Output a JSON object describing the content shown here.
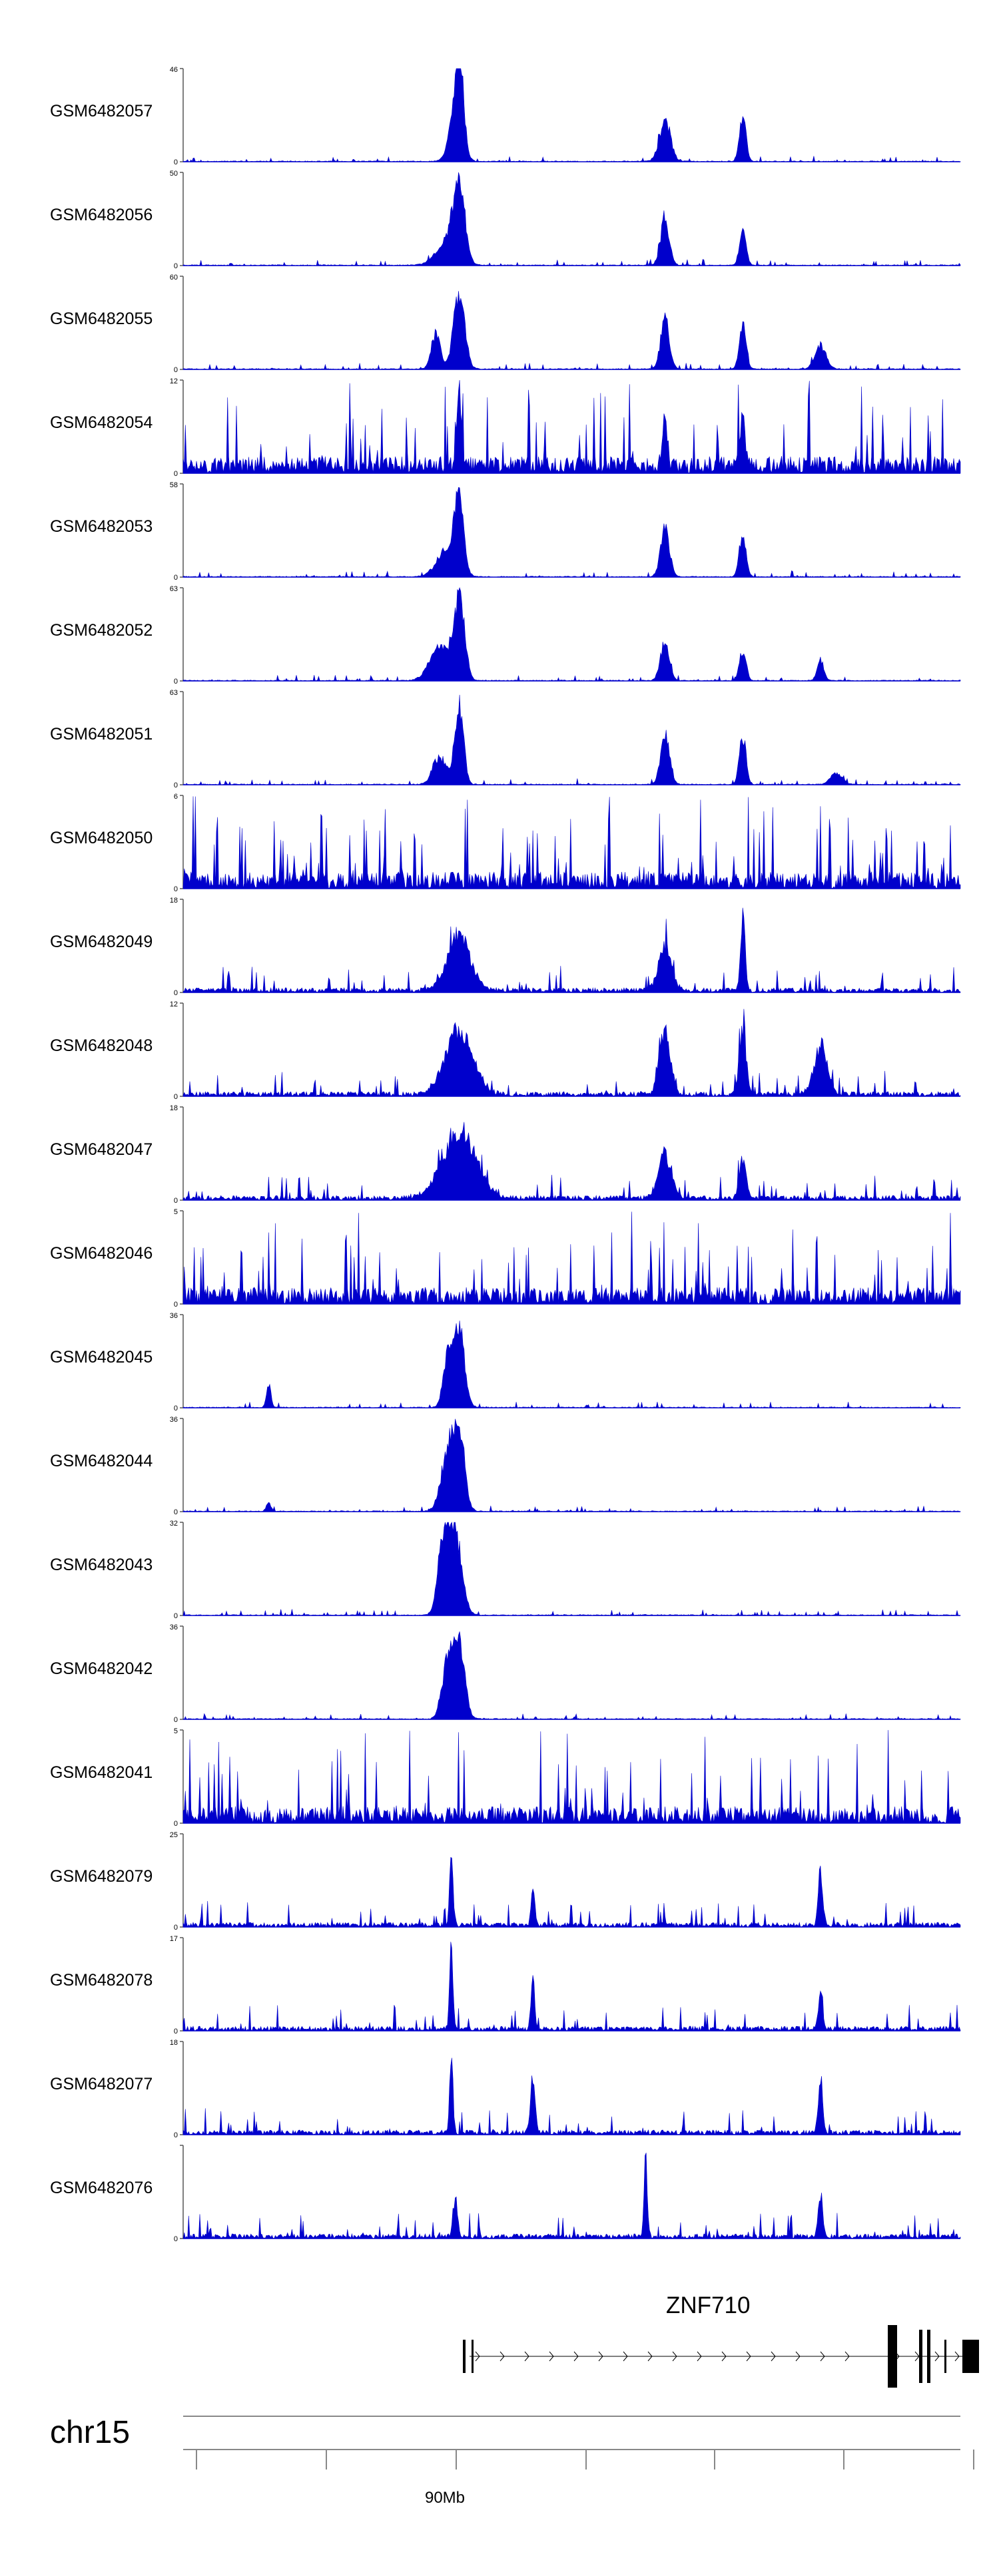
{
  "chart_data": {
    "type": "area",
    "title": "",
    "chromosome": "chr15",
    "x_axis": {
      "tick_labels": [
        "90Mb"
      ]
    },
    "gene": {
      "name": "ZNF710",
      "strand": "+"
    },
    "tracks": [
      {
        "name": "GSM6482057",
        "ymax": "46",
        "ymin": "0",
        "profile": "sparse",
        "peaks": [
          {
            "x": 0.355,
            "h": 1.0,
            "w": 0.008
          },
          {
            "x": 0.35,
            "h": 0.45,
            "w": 0.012
          },
          {
            "x": 0.62,
            "h": 0.52,
            "w": 0.01
          },
          {
            "x": 0.72,
            "h": 0.56,
            "w": 0.006
          }
        ]
      },
      {
        "name": "GSM6482056",
        "ymax": "50",
        "ymin": "0",
        "profile": "sparse",
        "peaks": [
          {
            "x": 0.355,
            "h": 1.0,
            "w": 0.01
          },
          {
            "x": 0.34,
            "h": 0.3,
            "w": 0.02
          },
          {
            "x": 0.62,
            "h": 0.58,
            "w": 0.008
          },
          {
            "x": 0.72,
            "h": 0.42,
            "w": 0.006
          }
        ]
      },
      {
        "name": "GSM6482055",
        "ymax": "60",
        "ymin": "0",
        "profile": "sparse",
        "peaks": [
          {
            "x": 0.355,
            "h": 1.0,
            "w": 0.01
          },
          {
            "x": 0.325,
            "h": 0.45,
            "w": 0.008
          },
          {
            "x": 0.62,
            "h": 0.62,
            "w": 0.008
          },
          {
            "x": 0.72,
            "h": 0.58,
            "w": 0.006
          },
          {
            "x": 0.82,
            "h": 0.3,
            "w": 0.01
          }
        ]
      },
      {
        "name": "GSM6482054",
        "ymax": "12",
        "ymin": "0",
        "profile": "noisy",
        "peaks": [
          {
            "x": 0.355,
            "h": 0.95,
            "w": 0.004
          },
          {
            "x": 0.62,
            "h": 0.7,
            "w": 0.004
          },
          {
            "x": 0.72,
            "h": 0.6,
            "w": 0.004
          }
        ]
      },
      {
        "name": "GSM6482053",
        "ymax": "58",
        "ymin": "0",
        "profile": "sparse",
        "peaks": [
          {
            "x": 0.355,
            "h": 1.0,
            "w": 0.008
          },
          {
            "x": 0.34,
            "h": 0.35,
            "w": 0.018
          },
          {
            "x": 0.62,
            "h": 0.62,
            "w": 0.008
          },
          {
            "x": 0.72,
            "h": 0.55,
            "w": 0.006
          }
        ]
      },
      {
        "name": "GSM6482052",
        "ymax": "63",
        "ymin": "0",
        "profile": "sparse",
        "peaks": [
          {
            "x": 0.355,
            "h": 1.0,
            "w": 0.01
          },
          {
            "x": 0.33,
            "h": 0.4,
            "w": 0.018
          },
          {
            "x": 0.62,
            "h": 0.5,
            "w": 0.008
          },
          {
            "x": 0.72,
            "h": 0.38,
            "w": 0.006
          },
          {
            "x": 0.82,
            "h": 0.25,
            "w": 0.006
          }
        ]
      },
      {
        "name": "GSM6482051",
        "ymax": "63",
        "ymin": "0",
        "profile": "sparse",
        "peaks": [
          {
            "x": 0.355,
            "h": 1.0,
            "w": 0.008
          },
          {
            "x": 0.33,
            "h": 0.35,
            "w": 0.012
          },
          {
            "x": 0.62,
            "h": 0.65,
            "w": 0.008
          },
          {
            "x": 0.72,
            "h": 0.6,
            "w": 0.006
          },
          {
            "x": 0.84,
            "h": 0.15,
            "w": 0.01
          }
        ]
      },
      {
        "name": "GSM6482050",
        "ymax": "6",
        "ymin": "0",
        "profile": "noisy",
        "peaks": []
      },
      {
        "name": "GSM6482049",
        "ymax": "18",
        "ymin": "0",
        "profile": "medium",
        "peaks": [
          {
            "x": 0.355,
            "h": 0.7,
            "w": 0.02
          },
          {
            "x": 0.62,
            "h": 0.55,
            "w": 0.012
          },
          {
            "x": 0.72,
            "h": 0.95,
            "w": 0.004
          }
        ]
      },
      {
        "name": "GSM6482048",
        "ymax": "12",
        "ymin": "0",
        "profile": "medium",
        "peaks": [
          {
            "x": 0.355,
            "h": 0.8,
            "w": 0.025
          },
          {
            "x": 0.62,
            "h": 0.8,
            "w": 0.01
          },
          {
            "x": 0.72,
            "h": 0.85,
            "w": 0.006
          },
          {
            "x": 0.82,
            "h": 0.6,
            "w": 0.012
          }
        ]
      },
      {
        "name": "GSM6482047",
        "ymax": "18",
        "ymin": "0",
        "profile": "medium",
        "peaks": [
          {
            "x": 0.355,
            "h": 0.85,
            "w": 0.03
          },
          {
            "x": 0.62,
            "h": 0.55,
            "w": 0.012
          },
          {
            "x": 0.72,
            "h": 0.5,
            "w": 0.006
          }
        ]
      },
      {
        "name": "GSM6482046",
        "ymax": "5",
        "ymin": "0",
        "profile": "noisy",
        "peaks": []
      },
      {
        "name": "GSM6482045",
        "ymax": "36",
        "ymin": "0",
        "profile": "sparse",
        "peaks": [
          {
            "x": 0.355,
            "h": 1.0,
            "w": 0.01
          },
          {
            "x": 0.34,
            "h": 0.6,
            "w": 0.008
          },
          {
            "x": 0.11,
            "h": 0.3,
            "w": 0.004
          }
        ]
      },
      {
        "name": "GSM6482044",
        "ymax": "36",
        "ymin": "0",
        "profile": "sparse",
        "peaks": [
          {
            "x": 0.355,
            "h": 1.0,
            "w": 0.01
          },
          {
            "x": 0.34,
            "h": 0.7,
            "w": 0.012
          },
          {
            "x": 0.11,
            "h": 0.12,
            "w": 0.004
          }
        ]
      },
      {
        "name": "GSM6482043",
        "ymax": "32",
        "ymin": "0",
        "profile": "sparse",
        "peaks": [
          {
            "x": 0.35,
            "h": 1.0,
            "w": 0.012
          },
          {
            "x": 0.335,
            "h": 0.9,
            "w": 0.01
          }
        ]
      },
      {
        "name": "GSM6482042",
        "ymax": "36",
        "ymin": "0",
        "profile": "sparse",
        "peaks": [
          {
            "x": 0.355,
            "h": 1.0,
            "w": 0.01
          },
          {
            "x": 0.34,
            "h": 0.7,
            "w": 0.01
          }
        ]
      },
      {
        "name": "GSM6482041",
        "ymax": "5",
        "ymin": "0",
        "profile": "noisy",
        "peaks": []
      },
      {
        "name": "GSM6482079",
        "ymax": "25",
        "ymin": "0",
        "profile": "medium",
        "peaks": [
          {
            "x": 0.345,
            "h": 1.0,
            "w": 0.003
          },
          {
            "x": 0.45,
            "h": 0.55,
            "w": 0.003
          },
          {
            "x": 0.82,
            "h": 0.7,
            "w": 0.004
          }
        ]
      },
      {
        "name": "GSM6482078",
        "ymax": "17",
        "ymin": "0",
        "profile": "medium",
        "peaks": [
          {
            "x": 0.345,
            "h": 1.0,
            "w": 0.003
          },
          {
            "x": 0.45,
            "h": 0.65,
            "w": 0.003
          },
          {
            "x": 0.82,
            "h": 0.45,
            "w": 0.004
          }
        ]
      },
      {
        "name": "GSM6482077",
        "ymax": "18",
        "ymin": "0",
        "profile": "medium",
        "peaks": [
          {
            "x": 0.345,
            "h": 1.0,
            "w": 0.003
          },
          {
            "x": 0.45,
            "h": 0.7,
            "w": 0.004
          },
          {
            "x": 0.82,
            "h": 0.7,
            "w": 0.004
          }
        ]
      },
      {
        "name": "GSM6482076",
        "ymax": "",
        "ymin": "0",
        "profile": "medium",
        "peaks": [
          {
            "x": 0.595,
            "h": 1.0,
            "w": 0.003
          },
          {
            "x": 0.82,
            "h": 0.55,
            "w": 0.004
          },
          {
            "x": 0.35,
            "h": 0.5,
            "w": 0.004
          }
        ]
      }
    ]
  },
  "colors": {
    "signal": "#0000cc",
    "axis": "#555555",
    "gene": "#000000"
  }
}
